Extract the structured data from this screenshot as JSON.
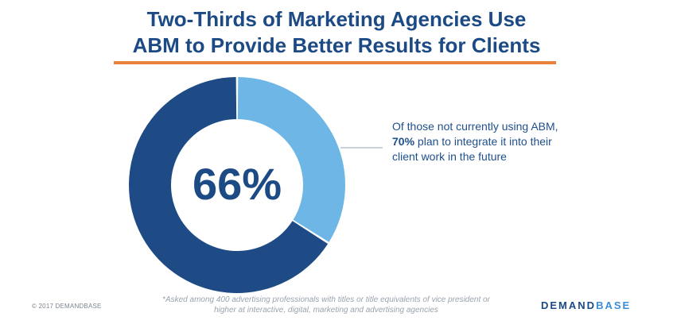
{
  "title": {
    "line1": "Two-Thirds of Marketing Agencies Use",
    "line2": "ABM to Provide Better Results for Clients"
  },
  "colors": {
    "title": "#1b4a84",
    "rule": "#e8823a",
    "primary_segment": "#1e4b86",
    "secondary_segment": "#6eb6e6"
  },
  "chart_data": {
    "type": "pie",
    "title": "Two-Thirds of Marketing Agencies Use ABM to Provide Better Results for Clients",
    "center_label": "66%",
    "slices": [
      {
        "value": 66,
        "color": "#1e4b86"
      },
      {
        "value": 34,
        "color": "#6eb6e6"
      }
    ]
  },
  "callout": {
    "pre": "Of those not currently using ABM, ",
    "bold": "70%",
    "post": " plan to integrate it into their client work in the future"
  },
  "footnote": {
    "line1": "*Asked among 400 advertising professionals with titles or title equivalents of vice president or",
    "line2": "higher at interactive, digital, marketing and advertising agencies"
  },
  "copyright": "© 2017 DEMANDBASE",
  "brand": {
    "part1": "DEMAND",
    "part2": "BASE"
  }
}
